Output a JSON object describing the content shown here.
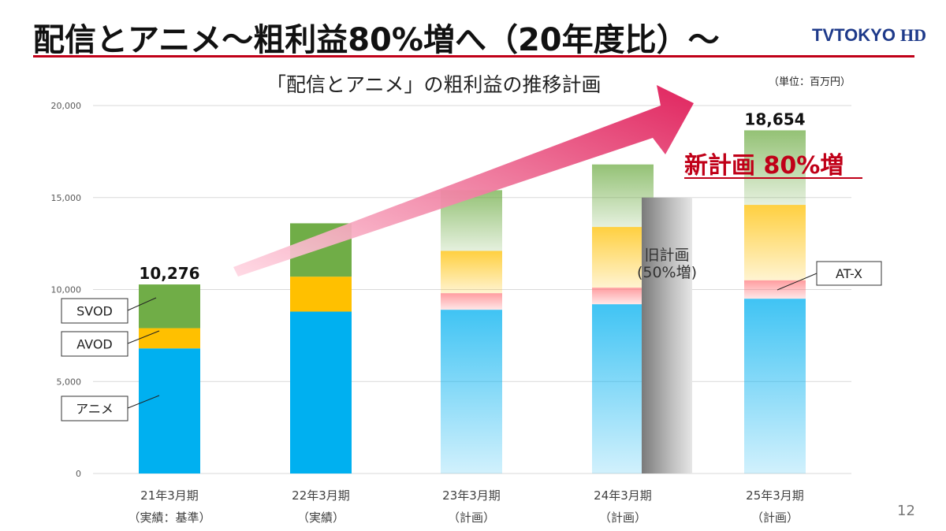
{
  "slide": {
    "title": "配信とアニメ～粗利益80%増へ（20年度比）～",
    "subtitle": "「配信とアニメ」の粗利益の推移計画",
    "unit": "（単位：百万円）",
    "page_number": "12",
    "logo_text": "TOKYO",
    "logo_suffix": "HD",
    "logo_prefix": "TV"
  },
  "colors": {
    "accent": "#c00018",
    "anime": "#00b0f0",
    "avod": "#ffc000",
    "svod": "#70ad47",
    "atx": "#ff7c80",
    "old_plan_bar": "#a6a6a6",
    "arrow": "#e0245e"
  },
  "chart_data": {
    "type": "bar",
    "stacked": true,
    "categories": [
      "21年3月期",
      "22年3月期",
      "23年3月期",
      "24年3月期",
      "25年3月期"
    ],
    "category_sublabels": [
      "（実績：基準）",
      "（実績）",
      "（計画）",
      "（計画）",
      "（計画）"
    ],
    "series": [
      {
        "name": "アニメ",
        "values": [
          6800,
          8800,
          8900,
          9200,
          9500
        ]
      },
      {
        "name": "AT-X",
        "values": [
          0,
          0,
          900,
          900,
          1000
        ]
      },
      {
        "name": "AVOD",
        "values": [
          1100,
          1900,
          2300,
          3300,
          4100
        ]
      },
      {
        "name": "SVOD",
        "values": [
          2376,
          2900,
          3300,
          3400,
          4054
        ]
      }
    ],
    "planned_from_index": 2,
    "totals_labels": [
      {
        "index": 0,
        "text": "10,276"
      },
      {
        "index": 4,
        "text": "18,654"
      }
    ],
    "old_plan": {
      "category_index": 3,
      "value": 15000,
      "label_line1": "旧計画",
      "label_line2": "(50%増)"
    },
    "new_plan_label": "新計画 80%増",
    "legend_callouts": [
      "SVOD",
      "AVOD",
      "アニメ",
      "AT-X"
    ],
    "y_ticks": [
      0,
      5000,
      10000,
      15000,
      20000
    ],
    "y_tick_labels": [
      "0",
      "5,000",
      "10,000",
      "15,000",
      "20,000"
    ],
    "ylim": [
      0,
      20000
    ]
  }
}
